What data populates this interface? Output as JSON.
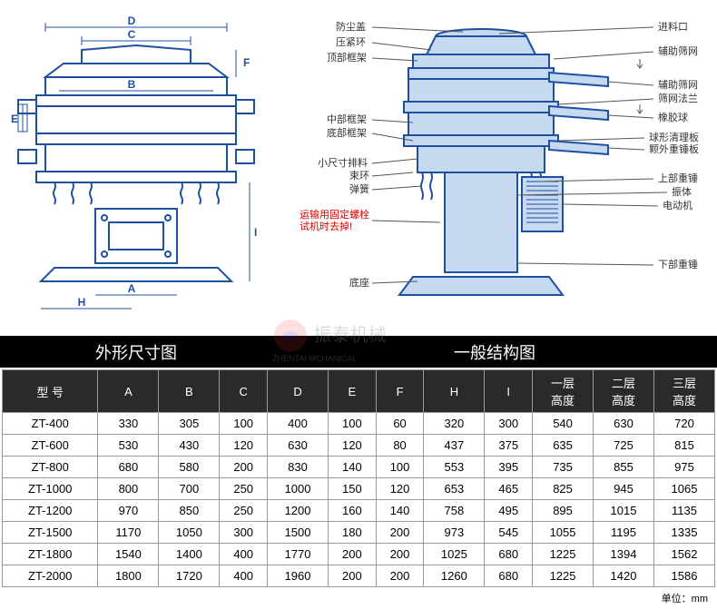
{
  "titles": {
    "left": "外形尺寸图",
    "right": "一般结构图"
  },
  "dimensions": {
    "labels": [
      "D",
      "C",
      "B",
      "F",
      "E",
      "A",
      "H",
      "I"
    ]
  },
  "structure_labels": {
    "left_side": [
      "防尘盖",
      "压紧环",
      "顶部框架",
      "中部框架",
      "底部框架",
      "小尺寸排料",
      "束环",
      "弹簧"
    ],
    "left_red": [
      "运输用固定螺栓",
      "试机时去掉!"
    ],
    "left_bottom": "底座",
    "right_side": [
      "进料口",
      "辅助筛网",
      "辅助筛网",
      "筛网法兰",
      "橡胶球",
      "球形清理板",
      "颗外重锤板",
      "上部重锤",
      "振体",
      "电动机",
      "下部重锤"
    ]
  },
  "watermark": "振泰机械",
  "watermark_sub": "ZHENTAI MCHANICAL",
  "table": {
    "headers": [
      "型 号",
      "A",
      "B",
      "C",
      "D",
      "E",
      "F",
      "H",
      "I",
      "一层\n高度",
      "二层\n高度",
      "三层\n高度"
    ],
    "rows": [
      [
        "ZT-400",
        "330",
        "305",
        "100",
        "400",
        "100",
        "60",
        "320",
        "300",
        "540",
        "630",
        "720"
      ],
      [
        "ZT-600",
        "530",
        "430",
        "120",
        "630",
        "120",
        "80",
        "437",
        "375",
        "635",
        "725",
        "815"
      ],
      [
        "ZT-800",
        "680",
        "580",
        "200",
        "830",
        "140",
        "100",
        "553",
        "395",
        "735",
        "855",
        "975"
      ],
      [
        "ZT-1000",
        "800",
        "700",
        "250",
        "1000",
        "150",
        "120",
        "653",
        "465",
        "825",
        "945",
        "1065"
      ],
      [
        "ZT-1200",
        "970",
        "850",
        "250",
        "1200",
        "160",
        "140",
        "758",
        "495",
        "895",
        "1015",
        "1135"
      ],
      [
        "ZT-1500",
        "1170",
        "1050",
        "300",
        "1500",
        "180",
        "200",
        "973",
        "545",
        "1055",
        "1195",
        "1335"
      ],
      [
        "ZT-1800",
        "1540",
        "1400",
        "400",
        "1770",
        "200",
        "200",
        "1025",
        "680",
        "1225",
        "1394",
        "1562"
      ],
      [
        "ZT-2000",
        "1800",
        "1720",
        "400",
        "1960",
        "200",
        "200",
        "1260",
        "680",
        "1225",
        "1420",
        "1586"
      ]
    ],
    "unit": "单位：mm"
  },
  "colors": {
    "line": "#1e50a2",
    "fill": "#c6d9f1",
    "header_bg": "#2a2a2a",
    "red": "#d00"
  }
}
